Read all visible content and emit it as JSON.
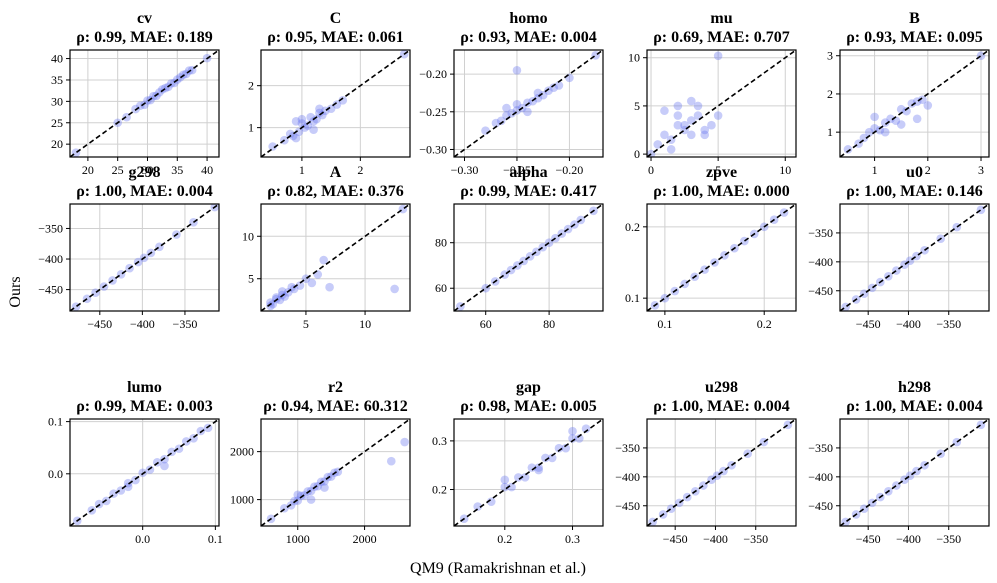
{
  "figure": {
    "xlabel": "QM9 (Ramakrishnan et al.)",
    "ylabel": "Ours",
    "point_color": "#6b78f0",
    "diag_color": "#000000"
  },
  "chart_data": [
    {
      "type": "scatter",
      "title": "cv",
      "subtitle": "ρ: 0.99, MAE: 0.189",
      "rho": 0.99,
      "mae": 0.189,
      "xlim": [
        17,
        42
      ],
      "ylim": [
        17,
        42
      ],
      "xticks": [
        20,
        25,
        30,
        35,
        40
      ],
      "yticks": [
        20,
        25,
        30,
        35,
        40
      ],
      "tick_labels": [
        "20",
        "25",
        "30",
        "35",
        "40"
      ],
      "x": [
        18,
        25,
        26.5,
        28,
        28.8,
        29.5,
        30,
        30.5,
        31,
        31.5,
        32,
        32.5,
        33,
        33.5,
        34,
        34.5,
        35,
        35.5,
        36,
        36.5,
        37,
        37.5,
        40
      ],
      "y": [
        18,
        25,
        26.3,
        28.2,
        29,
        29.2,
        30.2,
        30.3,
        31.2,
        31.3,
        32.1,
        32.8,
        33.1,
        33.4,
        34.2,
        34.3,
        35.1,
        35.6,
        36.2,
        36.4,
        37.2,
        37.3,
        40.1
      ]
    },
    {
      "type": "scatter",
      "title": "C",
      "subtitle": "ρ: 0.95, MAE: 0.061",
      "rho": 0.95,
      "mae": 0.061,
      "xlim": [
        0.3,
        2.85
      ],
      "ylim": [
        0.3,
        2.85
      ],
      "xticks": [
        1,
        2
      ],
      "yticks": [
        1,
        2
      ],
      "tick_labels": [
        "1",
        "2"
      ],
      "x": [
        0.5,
        0.7,
        0.8,
        0.85,
        0.9,
        0.95,
        1.0,
        1.05,
        1.1,
        1.15,
        1.2,
        1.25,
        1.3,
        1.35,
        1.4,
        1.5,
        1.6,
        1.7,
        0.9,
        1.0,
        1.2,
        1.3,
        2.75
      ],
      "y": [
        0.55,
        0.7,
        0.85,
        0.8,
        1.15,
        0.9,
        1.1,
        1.0,
        1.05,
        1.25,
        1.15,
        1.2,
        1.35,
        1.3,
        1.4,
        1.45,
        1.55,
        1.65,
        0.75,
        1.2,
        0.95,
        1.45,
        2.75
      ]
    },
    {
      "type": "scatter",
      "title": "homo",
      "subtitle": "ρ: 0.93, MAE: 0.004",
      "rho": 0.93,
      "mae": 0.004,
      "xlim": [
        -0.31,
        -0.168
      ],
      "ylim": [
        -0.31,
        -0.168
      ],
      "xticks": [
        -0.3,
        -0.25,
        -0.2
      ],
      "yticks": [
        -0.3,
        -0.25,
        -0.2
      ],
      "tick_labels": [
        "−0.30",
        "−0.25",
        "−0.20"
      ],
      "x": [
        -0.28,
        -0.27,
        -0.265,
        -0.26,
        -0.255,
        -0.25,
        -0.245,
        -0.24,
        -0.235,
        -0.23,
        -0.225,
        -0.22,
        -0.215,
        -0.21,
        -0.25,
        -0.24,
        -0.26,
        -0.23,
        -0.2,
        -0.25,
        -0.175
      ],
      "y": [
        -0.275,
        -0.265,
        -0.262,
        -0.255,
        -0.252,
        -0.248,
        -0.245,
        -0.238,
        -0.236,
        -0.232,
        -0.228,
        -0.222,
        -0.218,
        -0.215,
        -0.24,
        -0.25,
        -0.245,
        -0.225,
        -0.205,
        -0.195,
        -0.175
      ]
    },
    {
      "type": "scatter",
      "title": "mu",
      "subtitle": "ρ: 0.69, MAE: 0.707",
      "rho": 0.69,
      "mae": 0.707,
      "xlim": [
        -0.3,
        10.8
      ],
      "ylim": [
        -0.3,
        10.8
      ],
      "xticks": [
        0,
        5,
        10
      ],
      "yticks": [
        0,
        5,
        10
      ],
      "tick_labels": [
        "0",
        "5",
        "10"
      ],
      "x": [
        0,
        0.5,
        1,
        1.5,
        2,
        2.5,
        3,
        3.5,
        4,
        4.5,
        1,
        2,
        3,
        4,
        5,
        2.5,
        3,
        1.5,
        2,
        3.5,
        5
      ],
      "y": [
        0,
        1,
        2,
        1.5,
        3,
        2.5,
        3.5,
        4,
        2,
        3,
        4.5,
        5,
        5.5,
        2.5,
        4,
        3,
        2,
        0.5,
        4,
        5,
        10.2
      ]
    },
    {
      "type": "scatter",
      "title": "B",
      "subtitle": "ρ: 0.93, MAE: 0.095",
      "rho": 0.93,
      "mae": 0.095,
      "xlim": [
        0.35,
        3.15
      ],
      "ylim": [
        0.35,
        3.15
      ],
      "xticks": [
        1,
        2,
        3
      ],
      "yticks": [
        1,
        2,
        3
      ],
      "tick_labels": [
        "1",
        "2",
        "3"
      ],
      "x": [
        0.5,
        0.7,
        0.8,
        0.9,
        1.0,
        1.1,
        1.2,
        1.3,
        1.4,
        1.5,
        1.6,
        1.7,
        1.8,
        1.9,
        1.0,
        1.2,
        1.5,
        1.8,
        2.0,
        3.0
      ],
      "y": [
        0.55,
        0.7,
        0.85,
        1.0,
        1.1,
        1.05,
        1.25,
        1.35,
        1.3,
        1.6,
        1.55,
        1.75,
        1.8,
        1.85,
        1.4,
        1.0,
        1.2,
        1.35,
        1.7,
        3.0
      ]
    },
    {
      "type": "scatter",
      "title": "g298",
      "subtitle": "ρ: 1.00, MAE: 0.004",
      "rho": 1.0,
      "mae": 0.004,
      "xlim": [
        -485,
        -310
      ],
      "ylim": [
        -485,
        -310
      ],
      "xticks": [
        -450,
        -400,
        -350
      ],
      "yticks": [
        -450,
        -400,
        -350
      ],
      "tick_labels": [
        "−450",
        "−400",
        "−350"
      ],
      "x": [
        -478,
        -465,
        -455,
        -445,
        -435,
        -425,
        -415,
        -405,
        -398,
        -390,
        -380,
        -360,
        -340,
        -315
      ],
      "y": [
        -478,
        -465,
        -455,
        -445,
        -435,
        -425,
        -415,
        -405,
        -398,
        -390,
        -380,
        -360,
        -340,
        -315
      ]
    },
    {
      "type": "scatter",
      "title": "A",
      "subtitle": "ρ: 0.82, MAE: 0.376",
      "rho": 0.82,
      "mae": 0.376,
      "xlim": [
        1.2,
        13.8
      ],
      "ylim": [
        1.2,
        13.8
      ],
      "xticks": [
        5,
        10
      ],
      "yticks": [
        5,
        10
      ],
      "tick_labels": [
        "5",
        "10"
      ],
      "x": [
        2,
        2.2,
        2.5,
        2.8,
        3,
        3.2,
        3.5,
        3.8,
        4,
        4.5,
        5,
        5.5,
        6,
        6.5,
        7,
        2.5,
        3,
        2,
        12.5,
        13.2
      ],
      "y": [
        2.2,
        2.0,
        2.6,
        2.5,
        3.1,
        2.9,
        3.4,
        4.0,
        3.8,
        4.2,
        5.0,
        4.5,
        5.5,
        7.2,
        4.0,
        2.8,
        3.5,
        1.8,
        3.8,
        13.2
      ]
    },
    {
      "type": "scatter",
      "title": "alpha",
      "subtitle": "ρ: 0.99, MAE: 0.417",
      "rho": 0.99,
      "mae": 0.417,
      "xlim": [
        50,
        97
      ],
      "ylim": [
        50,
        97
      ],
      "xticks": [
        60,
        80
      ],
      "yticks": [
        60,
        80
      ],
      "tick_labels": [
        "60",
        "80"
      ],
      "x": [
        52,
        60,
        63,
        66,
        68,
        70,
        72,
        74,
        76,
        78,
        80,
        82,
        84,
        86,
        88,
        90,
        94
      ],
      "y": [
        52,
        60,
        63,
        66,
        68,
        70,
        72,
        74,
        76,
        78,
        80,
        82,
        84,
        86,
        88,
        90,
        94
      ]
    },
    {
      "type": "scatter",
      "title": "zpve",
      "subtitle": "ρ: 1.00, MAE: 0.000",
      "rho": 1.0,
      "mae": 0.0,
      "xlim": [
        0.082,
        0.232
      ],
      "ylim": [
        0.082,
        0.232
      ],
      "xticks": [
        0.1,
        0.2
      ],
      "yticks": [
        0.1,
        0.2
      ],
      "tick_labels": [
        "0.1",
        "0.2"
      ],
      "x": [
        0.09,
        0.1,
        0.11,
        0.12,
        0.13,
        0.14,
        0.15,
        0.16,
        0.17,
        0.18,
        0.19,
        0.2,
        0.21,
        0.22
      ],
      "y": [
        0.09,
        0.1,
        0.11,
        0.12,
        0.13,
        0.14,
        0.15,
        0.16,
        0.17,
        0.18,
        0.19,
        0.2,
        0.21,
        0.22
      ]
    },
    {
      "type": "scatter",
      "title": "u0",
      "subtitle": "ρ: 1.00, MAE: 0.146",
      "rho": 1.0,
      "mae": 0.146,
      "xlim": [
        -485,
        -300
      ],
      "ylim": [
        -485,
        -300
      ],
      "xticks": [
        -450,
        -400,
        -350
      ],
      "yticks": [
        -450,
        -400,
        -350
      ],
      "tick_labels": [
        "−450",
        "−400",
        "−350"
      ],
      "x": [
        -478,
        -465,
        -455,
        -445,
        -435,
        -425,
        -415,
        -405,
        -398,
        -390,
        -380,
        -360,
        -340,
        -310
      ],
      "y": [
        -478,
        -465,
        -455,
        -445,
        -435,
        -425,
        -415,
        -405,
        -398,
        -390,
        -380,
        -360,
        -340,
        -310
      ]
    },
    {
      "type": "scatter",
      "title": "lumo",
      "subtitle": "ρ: 0.99, MAE: 0.003",
      "rho": 0.99,
      "mae": 0.003,
      "xlim": [
        -0.1,
        0.105
      ],
      "ylim": [
        -0.1,
        0.105
      ],
      "xticks": [
        0.0,
        0.1
      ],
      "yticks": [
        0.0,
        0.1
      ],
      "tick_labels": [
        "0.0",
        "0.1"
      ],
      "x": [
        -0.09,
        -0.07,
        -0.06,
        -0.05,
        -0.04,
        -0.03,
        -0.02,
        -0.01,
        0,
        0.01,
        0.02,
        0.03,
        0.04,
        0.05,
        0.06,
        0.07,
        0.08,
        0.09,
        -0.02,
        0.03
      ],
      "y": [
        -0.09,
        -0.07,
        -0.058,
        -0.052,
        -0.038,
        -0.032,
        -0.018,
        -0.012,
        0.002,
        0.008,
        0.022,
        0.028,
        0.042,
        0.048,
        0.062,
        0.068,
        0.082,
        0.088,
        -0.025,
        0.015
      ]
    },
    {
      "type": "scatter",
      "title": "r2",
      "subtitle": "ρ: 0.94, MAE: 60.312",
      "rho": 0.94,
      "mae": 60.312,
      "xlim": [
        450,
        2680
      ],
      "ylim": [
        450,
        2680
      ],
      "xticks": [
        1000,
        2000
      ],
      "yticks": [
        1000,
        2000
      ],
      "tick_labels": [
        "1000",
        "2000"
      ],
      "x": [
        600,
        800,
        900,
        950,
        1000,
        1050,
        1100,
        1150,
        1200,
        1250,
        1300,
        1350,
        1400,
        1450,
        1500,
        1550,
        1600,
        1000,
        1200,
        1400,
        2400,
        2600
      ],
      "y": [
        600,
        820,
        880,
        970,
        980,
        1080,
        1090,
        1170,
        1180,
        1270,
        1280,
        1370,
        1380,
        1470,
        1480,
        1560,
        1580,
        1100,
        1000,
        1250,
        1800,
        2200
      ]
    },
    {
      "type": "scatter",
      "title": "gap",
      "subtitle": "ρ: 0.98, MAE: 0.005",
      "rho": 0.98,
      "mae": 0.005,
      "xlim": [
        0.125,
        0.345
      ],
      "ylim": [
        0.125,
        0.345
      ],
      "xticks": [
        0.2,
        0.3
      ],
      "yticks": [
        0.2,
        0.3
      ],
      "tick_labels": [
        "0.2",
        "0.3"
      ],
      "x": [
        0.14,
        0.16,
        0.18,
        0.2,
        0.21,
        0.22,
        0.23,
        0.24,
        0.25,
        0.26,
        0.27,
        0.28,
        0.29,
        0.3,
        0.31,
        0.32,
        0.2,
        0.25,
        0.3
      ],
      "y": [
        0.14,
        0.165,
        0.175,
        0.205,
        0.205,
        0.225,
        0.225,
        0.245,
        0.245,
        0.265,
        0.265,
        0.285,
        0.285,
        0.305,
        0.305,
        0.325,
        0.22,
        0.24,
        0.32
      ]
    },
    {
      "type": "scatter",
      "title": "u298",
      "subtitle": "ρ: 1.00, MAE: 0.004",
      "rho": 1.0,
      "mae": 0.004,
      "xlim": [
        -485,
        -300
      ],
      "ylim": [
        -485,
        -300
      ],
      "xticks": [
        -450,
        -400,
        -350
      ],
      "yticks": [
        -450,
        -400,
        -350
      ],
      "tick_labels": [
        "−450",
        "−400",
        "−350"
      ],
      "x": [
        -478,
        -465,
        -455,
        -445,
        -435,
        -425,
        -415,
        -405,
        -398,
        -390,
        -380,
        -360,
        -340,
        -310
      ],
      "y": [
        -478,
        -465,
        -455,
        -445,
        -435,
        -425,
        -415,
        -405,
        -398,
        -390,
        -380,
        -360,
        -340,
        -310
      ]
    },
    {
      "type": "scatter",
      "title": "h298",
      "subtitle": "ρ: 1.00, MAE: 0.004",
      "rho": 1.0,
      "mae": 0.004,
      "xlim": [
        -485,
        -300
      ],
      "ylim": [
        -485,
        -300
      ],
      "xticks": [
        -450,
        -400,
        -350
      ],
      "yticks": [
        -450,
        -400,
        -350
      ],
      "tick_labels": [
        "−450",
        "−400",
        "−350"
      ],
      "x": [
        -478,
        -465,
        -455,
        -445,
        -435,
        -425,
        -415,
        -405,
        -398,
        -390,
        -380,
        -360,
        -340,
        -310
      ],
      "y": [
        -478,
        -465,
        -455,
        -445,
        -435,
        -425,
        -415,
        -405,
        -398,
        -390,
        -380,
        -360,
        -340,
        -310
      ]
    }
  ]
}
